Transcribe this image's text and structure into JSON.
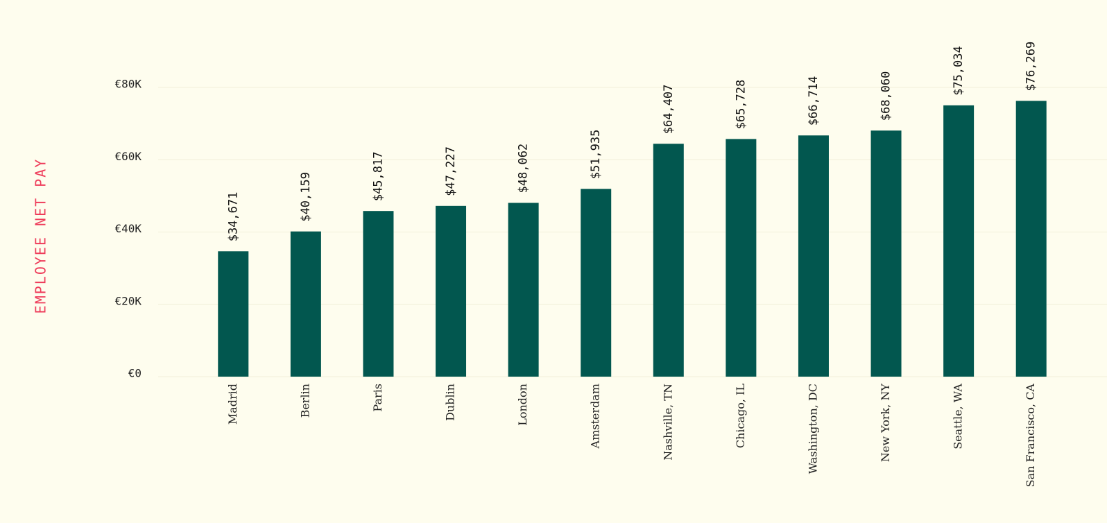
{
  "chart_data": {
    "type": "bar",
    "y_axis_label": "EMPLOYEE NET PAY",
    "categories": [
      "Madrid",
      "Berlin",
      "Paris",
      "Dublin",
      "London",
      "Amsterdam",
      "Nashville, TN",
      "Chicago, IL",
      "Washington, DC",
      "New York, NY",
      "Seattle, WA",
      "San Francisco, CA"
    ],
    "values": [
      34671,
      40159,
      45817,
      47227,
      48062,
      51935,
      64407,
      65728,
      66714,
      68060,
      75034,
      76269
    ],
    "value_labels": [
      "$34,671",
      "$40,159",
      "$45,817",
      "$47,227",
      "$48,062",
      "$51,935",
      "$64,407",
      "$65,728",
      "$66,714",
      "$68,060",
      "$75,034",
      "$76,269"
    ],
    "color": "#02574f",
    "ylim": [
      0,
      80000
    ],
    "yticks": [
      {
        "value": 0,
        "label": "€0"
      },
      {
        "value": 20000,
        "label": "€20K"
      },
      {
        "value": 40000,
        "label": "€40K"
      },
      {
        "value": 60000,
        "label": "€60K"
      },
      {
        "value": 80000,
        "label": "€80K"
      }
    ],
    "grid": true
  }
}
